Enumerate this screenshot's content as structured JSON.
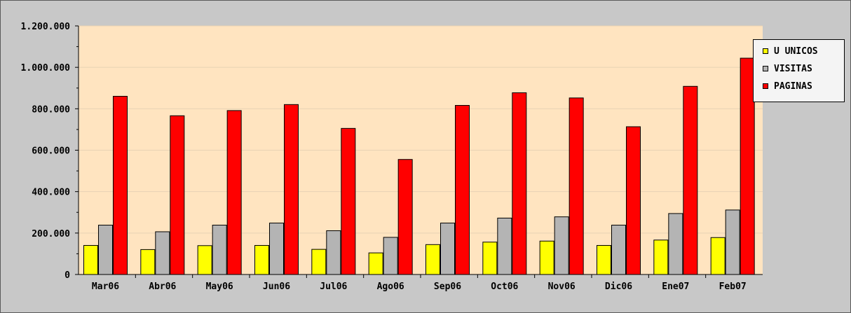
{
  "chart_data": {
    "type": "bar",
    "title": "",
    "xlabel": "",
    "ylabel": "",
    "ylim": [
      0,
      1200000
    ],
    "y_ticks": [
      0,
      200000,
      400000,
      600000,
      800000,
      1000000,
      1200000
    ],
    "y_tick_labels": [
      "0",
      "200.000",
      "400.000",
      "600.000",
      "800.000",
      "1.000.000",
      "1.200.000"
    ],
    "categories": [
      "Mar06",
      "Abr06",
      "May06",
      "Jun06",
      "Jul06",
      "Ago06",
      "Sep06",
      "Oct06",
      "Nov06",
      "Dic06",
      "Ene07",
      "Feb07"
    ],
    "series": [
      {
        "name": "U UNICOS",
        "color": "#ffff00",
        "values": [
          142000,
          122000,
          141000,
          142000,
          123000,
          106000,
          146000,
          158000,
          163000,
          142000,
          168000,
          180000
        ]
      },
      {
        "name": "VISITAS",
        "color": "#b4b4b4",
        "values": [
          240000,
          208000,
          240000,
          250000,
          213000,
          181000,
          250000,
          274000,
          280000,
          240000,
          296000,
          313000
        ]
      },
      {
        "name": "PAGINAS",
        "color": "#ff0000",
        "values": [
          862000,
          768000,
          793000,
          822000,
          707000,
          557000,
          818000,
          879000,
          854000,
          715000,
          910000,
          1046000
        ]
      }
    ],
    "grid": "horizontal",
    "plot_background": "#ffe4c0",
    "frame_background": "#c8c8c8",
    "legend_position": "top-right"
  }
}
